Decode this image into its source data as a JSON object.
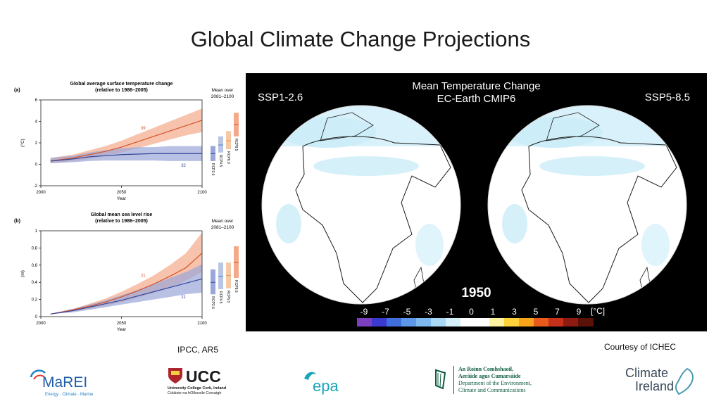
{
  "slide": {
    "title": "Global Climate Change Projections",
    "left_credit": "IPCC, AR5",
    "right_credit": "Courtesy of ICHEC"
  },
  "chart_data": [
    {
      "type": "line",
      "panel_label": "(a)",
      "title": "Global average surface temperature change",
      "subtitle": "(relative to 1986–2005)",
      "xlabel": "Year",
      "ylabel": "(°C)",
      "xlim": [
        2000,
        2100
      ],
      "ylim": [
        -2,
        6
      ],
      "x_ticks": [
        2000,
        2050,
        2100
      ],
      "y_ticks": [
        -2,
        0,
        2,
        4,
        6
      ],
      "x": [
        2006,
        2020,
        2030,
        2040,
        2050,
        2060,
        2070,
        2080,
        2090,
        2100
      ],
      "series": [
        {
          "name": "RCP8.5",
          "color": "#d5532a",
          "band_color": "#f4a98a",
          "values": [
            0.3,
            0.6,
            0.9,
            1.2,
            1.6,
            2.1,
            2.6,
            3.1,
            3.6,
            4.1
          ],
          "lower": [
            0.1,
            0.3,
            0.5,
            0.8,
            1.1,
            1.5,
            1.9,
            2.3,
            2.7,
            3.0
          ],
          "upper": [
            0.6,
            0.9,
            1.3,
            1.7,
            2.2,
            2.8,
            3.4,
            4.0,
            4.6,
            5.2
          ],
          "model_count": "39"
        },
        {
          "name": "RCP2.6",
          "color": "#33459a",
          "band_color": "#9aa7d8",
          "values": [
            0.3,
            0.5,
            0.7,
            0.8,
            0.9,
            0.95,
            1.0,
            1.0,
            1.0,
            1.0
          ],
          "lower": [
            0.1,
            0.2,
            0.3,
            0.35,
            0.35,
            0.35,
            0.35,
            0.3,
            0.3,
            0.3
          ],
          "upper": [
            0.6,
            0.8,
            1.1,
            1.3,
            1.5,
            1.6,
            1.6,
            1.7,
            1.7,
            1.7
          ],
          "model_count": "32"
        }
      ],
      "side_panel": {
        "title_line1": "Mean over",
        "title_line2": "2081–2100",
        "bars": [
          {
            "name": "RCP2.6",
            "mean": 1.0,
            "low": 0.3,
            "high": 1.7,
            "color": "#9aa7d8",
            "line": "#33459a"
          },
          {
            "name": "RCP4.5",
            "mean": 1.8,
            "low": 1.1,
            "high": 2.6,
            "color": "#b9c6e4",
            "line": "#4b86c5"
          },
          {
            "name": "RCP6.0",
            "mean": 2.2,
            "low": 1.4,
            "high": 3.1,
            "color": "#f6c9a6",
            "line": "#e69a57"
          },
          {
            "name": "RCP8.5",
            "mean": 3.7,
            "low": 2.6,
            "high": 4.8,
            "color": "#f4a98a",
            "line": "#d5532a"
          }
        ]
      }
    },
    {
      "type": "line",
      "panel_label": "(b)",
      "title": "Global mean sea level rise",
      "subtitle": "(relative to 1986–2005)",
      "xlabel": "Year",
      "ylabel": "(m)",
      "xlim": [
        2000,
        2100
      ],
      "ylim": [
        0,
        1
      ],
      "x_ticks": [
        2000,
        2050,
        2100
      ],
      "y_ticks": [
        0,
        0.2,
        0.4,
        0.6,
        0.8,
        1
      ],
      "x": [
        2006,
        2020,
        2030,
        2040,
        2050,
        2060,
        2070,
        2080,
        2090,
        2100
      ],
      "series": [
        {
          "name": "RCP8.5",
          "color": "#d5532a",
          "band_color": "#f4a98a",
          "values": [
            0.03,
            0.08,
            0.12,
            0.17,
            0.23,
            0.3,
            0.38,
            0.47,
            0.57,
            0.74
          ],
          "lower": [
            0.03,
            0.06,
            0.09,
            0.13,
            0.17,
            0.22,
            0.28,
            0.34,
            0.42,
            0.52
          ],
          "upper": [
            0.03,
            0.09,
            0.15,
            0.21,
            0.29,
            0.38,
            0.48,
            0.6,
            0.74,
            0.98
          ],
          "model_count": "21"
        },
        {
          "name": "RCP2.6",
          "color": "#33459a",
          "band_color": "#9aa7d8",
          "values": [
            0.03,
            0.07,
            0.11,
            0.15,
            0.19,
            0.24,
            0.29,
            0.34,
            0.39,
            0.44
          ],
          "lower": [
            0.03,
            0.05,
            0.08,
            0.11,
            0.14,
            0.17,
            0.2,
            0.23,
            0.26,
            0.28
          ],
          "upper": [
            0.03,
            0.09,
            0.14,
            0.19,
            0.25,
            0.31,
            0.38,
            0.45,
            0.52,
            0.61
          ],
          "model_count": "21"
        }
      ],
      "side_panel": {
        "title_line1": "Mean over",
        "title_line2": "2081–2100",
        "bars": [
          {
            "name": "RCP2.6",
            "mean": 0.4,
            "low": 0.26,
            "high": 0.55,
            "color": "#9aa7d8",
            "line": "#33459a"
          },
          {
            "name": "RCP4.5",
            "mean": 0.47,
            "low": 0.32,
            "high": 0.63,
            "color": "#b9c6e4",
            "line": "#4b86c5"
          },
          {
            "name": "RCP6.0",
            "mean": 0.48,
            "low": 0.33,
            "high": 0.63,
            "color": "#f6c9a6",
            "line": "#e69a57"
          },
          {
            "name": "RCP8.5",
            "mean": 0.63,
            "low": 0.45,
            "high": 0.82,
            "color": "#f4a98a",
            "line": "#d5532a"
          }
        ]
      }
    }
  ],
  "animation": {
    "title_line1": "Mean Temperature Change",
    "title_line2": "EC-Earth CMIP6",
    "left_scenario": "SSP1-2.6",
    "right_scenario": "SSP5-8.5",
    "year": "1950",
    "colorbar": {
      "unit": "[°C]",
      "tick_labels": [
        "-9",
        "-7",
        "-5",
        "-3",
        "-1",
        "0",
        "1",
        "3",
        "5",
        "7",
        "9"
      ],
      "colors": [
        "#7b3fbf",
        "#3a3ad0",
        "#3f6fdc",
        "#5d98e8",
        "#7fb8ee",
        "#a9d8f5",
        "#d6f0fa",
        "#ffffff",
        "#ffffff",
        "#fff2a0",
        "#ffd23c",
        "#f7a31c",
        "#ea5a1a",
        "#c7301a",
        "#8e1b12",
        "#5a1208"
      ]
    }
  },
  "logos": {
    "marei_name": "MaREI",
    "marei_tagline": "Energy · Climate · Marine",
    "ucc_name": "UCC",
    "ucc_line1": "University College Cork, Ireland",
    "ucc_line2": "Coláiste na hOllscoile Corcaigh",
    "epa_name": "epa",
    "dept_line1": "An Roinn Comhshaoil,",
    "dept_line2": "Aeráide agus Cumarsáide",
    "dept_line3": "Department of the Environment,",
    "dept_line4": "Climate and Communications",
    "ci_line1": "Climate",
    "ci_line2": "Ireland"
  }
}
